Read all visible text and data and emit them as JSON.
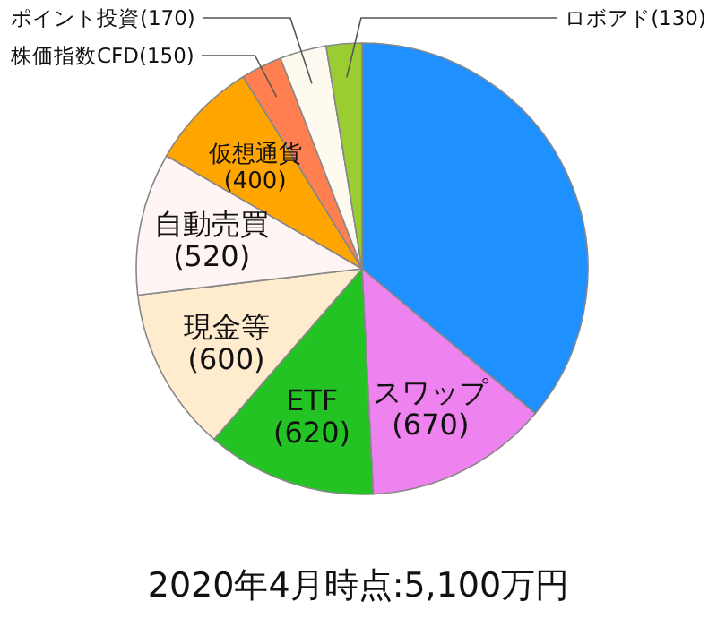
{
  "chart_data": {
    "type": "pie",
    "title": "2020年4月時点:5,100万円",
    "categories": [
      null,
      "スワップ",
      "ETF",
      "現金等",
      "自動売買",
      "仮想通貨",
      "株価指数CFD",
      "ポイント投資",
      "ロボアド"
    ],
    "values": [
      1840,
      670,
      620,
      600,
      520,
      400,
      150,
      170,
      130
    ],
    "value_labels": [
      null,
      "(670)",
      "(620)",
      "(600)",
      "(520)",
      "(400)",
      "(150)",
      "(170)",
      "(130)"
    ],
    "colors": [
      "#1e90ff",
      "#ee82ee",
      "#22c322",
      "#ffebcd",
      "#fff5f5",
      "#ffa500",
      "#ff7f50",
      "#fffaf0",
      "#9acd32"
    ]
  }
}
